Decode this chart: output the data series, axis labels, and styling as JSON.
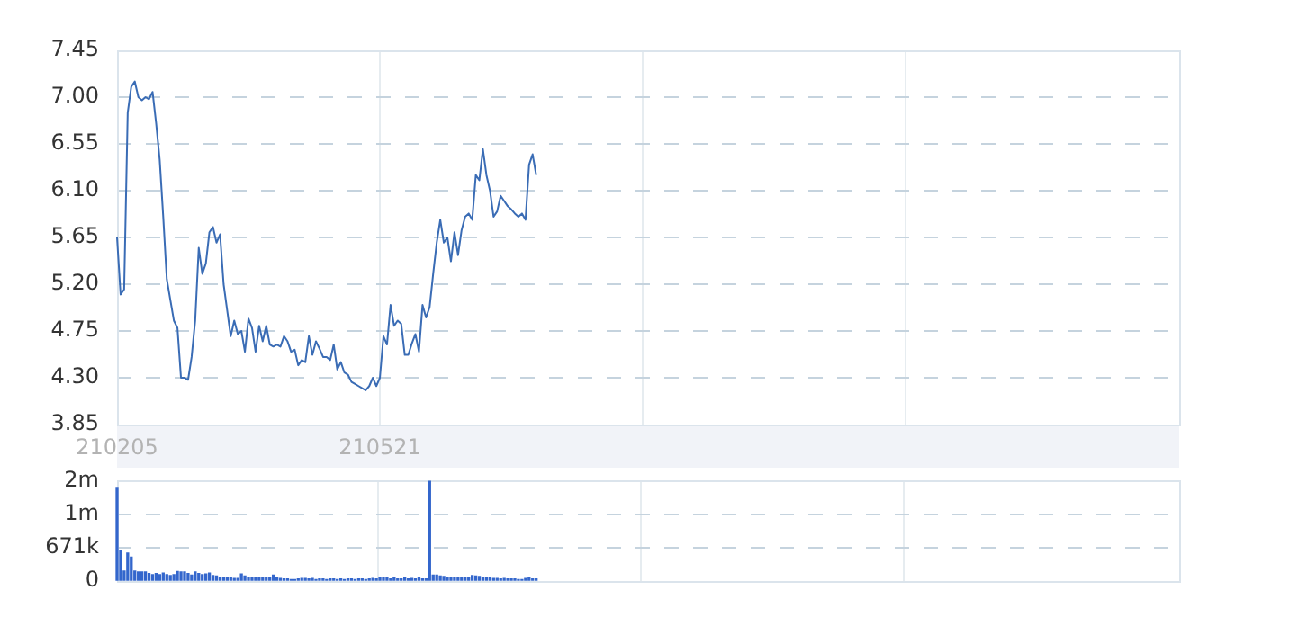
{
  "chart_data": [
    {
      "type": "line",
      "categories": [
        "210205",
        null,
        null,
        null,
        null,
        null,
        null,
        null,
        null,
        null,
        null,
        null,
        null,
        null,
        null,
        null,
        null,
        null,
        null,
        null,
        null,
        null,
        null,
        null,
        null,
        null,
        null,
        null,
        null,
        null,
        null,
        null,
        null,
        null,
        null,
        null,
        null,
        null,
        null,
        null,
        null,
        null,
        null,
        null,
        null,
        null,
        null,
        null,
        null,
        null,
        null,
        null,
        null,
        null,
        null,
        null,
        null,
        null,
        null,
        null,
        null,
        null,
        null,
        null,
        null,
        null,
        null,
        null,
        null,
        null,
        null,
        null,
        null,
        null,
        "210521",
        null,
        null,
        null,
        null,
        null,
        null,
        null,
        null,
        null,
        null,
        null,
        null,
        null,
        null,
        null,
        null,
        null,
        null,
        null,
        null,
        null,
        null,
        null,
        null,
        null,
        null,
        null,
        null,
        null,
        null,
        null,
        null,
        null,
        null,
        null,
        null,
        null,
        null,
        null,
        null,
        null,
        null,
        null,
        null,
        null,
        null,
        null,
        null,
        null,
        null,
        null,
        null,
        null,
        null,
        null,
        null,
        null,
        null,
        null,
        null,
        null,
        null,
        null,
        null,
        null,
        null,
        null,
        null,
        null,
        null,
        null,
        null,
        null,
        null,
        null,
        null,
        null,
        null,
        null,
        null,
        null,
        null,
        null,
        null,
        null,
        null,
        null,
        null,
        null,
        null,
        null,
        null,
        null,
        null,
        null,
        null,
        null,
        null,
        null,
        null,
        null,
        null,
        null,
        null,
        null,
        null,
        null,
        null,
        null,
        null,
        null,
        null,
        null,
        null,
        null,
        null,
        null,
        null,
        null,
        null,
        null,
        null,
        null,
        null,
        null,
        null,
        null,
        null,
        null,
        null,
        null,
        null,
        null,
        null,
        null,
        null,
        null,
        null,
        null,
        null,
        null,
        null,
        null,
        null,
        null,
        null,
        null,
        null,
        null,
        null,
        null,
        null,
        null,
        null,
        null,
        null,
        null,
        null,
        null,
        null,
        null,
        null,
        null,
        null,
        null,
        null,
        null,
        null,
        null,
        null,
        null,
        null,
        null,
        null,
        null,
        null,
        null,
        null,
        null,
        null,
        null,
        null,
        null,
        null,
        null,
        null,
        null,
        null,
        null,
        null,
        null,
        null,
        null,
        null,
        null,
        null,
        null,
        null,
        null,
        null,
        null,
        null,
        null,
        null,
        null,
        null,
        null,
        null,
        null,
        null,
        null,
        null,
        null,
        null,
        null,
        null,
        null,
        null,
        null,
        null,
        null,
        null,
        null,
        null,
        null
      ],
      "series": [
        {
          "color": "#3a6cb5",
          "values": [
            5.65,
            5.1,
            5.15,
            6.85,
            7.1,
            7.15,
            7.0,
            6.97,
            7.0,
            6.98,
            7.05,
            6.75,
            6.4,
            5.85,
            5.25,
            5.05,
            4.85,
            4.78,
            4.3,
            4.3,
            4.28,
            4.5,
            4.85,
            5.55,
            5.3,
            5.4,
            5.7,
            5.75,
            5.6,
            5.68,
            5.2,
            4.95,
            4.7,
            4.85,
            4.72,
            4.75,
            4.55,
            4.87,
            4.78,
            4.55,
            4.8,
            4.65,
            4.8,
            4.62,
            4.6,
            4.62,
            4.6,
            4.7,
            4.65,
            4.55,
            4.57,
            4.42,
            4.47,
            4.45,
            4.7,
            4.52,
            4.65,
            4.58,
            4.5,
            4.5,
            4.47,
            4.62,
            4.38,
            4.45,
            4.35,
            4.33,
            4.26,
            4.24,
            4.22,
            4.2,
            4.18,
            4.22,
            4.3,
            4.22,
            4.3,
            4.7,
            4.62,
            5.0,
            4.8,
            4.85,
            4.82,
            4.52,
            4.52,
            4.63,
            4.72,
            4.55,
            5.0,
            4.88,
            4.98,
            5.3,
            5.6,
            5.82,
            5.6,
            5.65,
            5.42,
            5.7,
            5.48,
            5.72,
            5.85,
            5.88,
            5.82,
            6.25,
            6.2,
            6.5,
            6.25,
            6.1,
            5.85,
            5.9,
            6.05,
            6.0,
            5.95,
            5.92,
            5.88,
            5.85,
            5.88,
            5.82,
            6.35,
            6.45,
            6.25,
            null,
            null,
            null,
            null,
            null,
            null,
            null,
            null,
            null,
            null,
            null,
            null,
            null,
            null,
            null,
            null,
            null,
            null,
            null,
            null,
            null,
            null,
            null,
            null,
            null,
            null,
            null,
            null,
            null,
            null,
            null,
            null,
            null,
            null,
            null,
            null,
            null,
            null,
            null,
            null,
            null,
            null,
            null,
            null,
            null,
            null,
            null,
            null,
            null,
            null,
            null,
            null,
            null,
            null,
            null,
            null,
            null,
            null,
            null,
            null,
            null,
            null,
            null,
            null,
            null,
            null,
            null,
            null,
            null,
            null,
            null,
            null,
            null,
            null,
            null,
            null,
            null,
            null,
            null,
            null,
            null,
            null,
            null,
            null,
            null,
            null,
            null,
            null,
            null,
            null,
            null,
            null,
            null,
            null,
            null,
            null,
            null,
            null,
            null,
            null,
            null,
            null,
            null,
            null,
            null,
            null,
            null,
            null,
            null,
            null,
            null,
            null,
            null,
            null,
            null,
            null,
            null,
            null,
            null,
            null,
            null,
            null,
            null,
            null,
            null,
            null,
            null,
            null,
            null,
            null,
            null,
            null,
            null,
            null,
            null,
            null,
            null,
            null,
            null,
            null,
            null,
            null,
            null,
            null,
            null,
            null,
            null,
            null,
            null,
            null,
            null,
            null,
            null,
            null,
            null,
            null,
            null,
            null,
            null,
            null,
            null,
            null,
            null,
            null,
            null,
            null,
            null,
            null,
            null,
            null,
            null,
            null,
            null,
            null,
            null,
            null,
            null,
            null,
            null,
            null,
            null
          ]
        }
      ],
      "ylim": [
        3.85,
        7.45
      ],
      "yticks": [
        3.85,
        {
          "value": 4.3,
          "label": "4.30"
        },
        4.75,
        {
          "value": 5.2,
          "label": "5.20"
        },
        5.65,
        {
          "value": 6.1,
          "label": "6.10"
        },
        6.55,
        {
          "value": 7,
          "label": "7.00"
        },
        7.45
      ],
      "grid": true,
      "legend": false,
      "marker": "none",
      "line_style": "solid"
    },
    {
      "type": "bar",
      "categories": [
        "210205",
        null,
        null,
        null,
        null,
        null,
        null,
        null,
        null,
        null,
        null,
        null,
        null,
        null,
        null,
        null,
        null,
        null,
        null,
        null,
        null,
        null,
        null,
        null,
        null,
        null,
        null,
        null,
        null,
        null,
        null,
        null,
        null,
        null,
        null,
        null,
        null,
        null,
        null,
        null,
        null,
        null,
        null,
        null,
        null,
        null,
        null,
        null,
        null,
        null,
        null,
        null,
        null,
        null,
        null,
        null,
        null,
        null,
        null,
        null,
        null,
        null,
        null,
        null,
        null,
        null,
        null,
        null,
        null,
        null,
        null,
        null,
        null,
        null,
        "210521",
        null,
        null,
        null,
        null,
        null,
        null,
        null,
        null,
        null,
        null,
        null,
        null,
        null,
        null,
        null,
        null,
        null,
        null,
        null,
        null,
        null,
        null,
        null,
        null,
        null,
        null,
        null,
        null,
        null,
        null,
        null,
        null,
        null,
        null,
        null,
        null,
        null,
        null,
        null,
        null,
        null,
        null,
        null,
        null,
        null,
        null,
        null,
        null,
        null,
        null,
        null,
        null,
        null,
        null,
        null,
        null,
        null,
        null,
        null,
        null,
        null,
        null,
        null,
        null,
        null,
        null,
        null,
        null,
        null,
        null,
        null,
        null,
        null,
        null,
        null,
        null,
        null,
        null,
        null,
        null,
        null,
        null,
        null,
        null,
        null,
        null,
        null,
        null,
        null,
        null,
        null,
        null,
        null,
        null,
        null,
        null,
        null,
        null,
        null,
        null,
        null,
        null,
        null,
        null,
        null,
        null,
        null,
        null,
        null,
        null,
        null,
        null,
        null,
        null,
        null,
        null,
        null,
        null,
        null,
        null,
        null,
        null,
        null,
        null,
        null,
        null,
        null,
        null,
        null,
        null,
        null,
        null,
        null,
        null,
        null,
        null,
        null,
        null,
        null,
        null,
        null,
        null,
        null,
        null,
        null,
        null,
        null,
        null,
        null,
        null,
        null,
        null,
        null,
        null,
        null,
        null,
        null,
        null,
        null,
        null,
        null,
        null,
        null,
        null,
        null,
        null,
        null,
        null,
        null,
        null,
        null,
        null,
        null,
        null,
        null,
        null,
        null,
        null,
        null,
        null,
        null,
        null,
        null,
        null,
        null,
        null,
        null,
        null,
        null,
        null,
        null,
        null,
        null,
        null,
        null,
        null,
        null,
        null,
        null,
        null,
        null,
        null,
        null,
        null,
        null,
        null,
        null,
        null,
        null,
        null,
        null,
        null,
        null,
        null,
        null,
        null,
        null,
        null,
        null,
        null,
        null,
        null,
        null,
        null,
        null
      ],
      "series": [
        {
          "color": "#3366cc",
          "values": [
            1860000,
            620000,
            200000,
            560000,
            480000,
            200000,
            180000,
            180000,
            180000,
            150000,
            130000,
            150000,
            130000,
            160000,
            130000,
            110000,
            130000,
            190000,
            180000,
            180000,
            150000,
            120000,
            180000,
            150000,
            130000,
            140000,
            160000,
            110000,
            100000,
            80000,
            60000,
            70000,
            60000,
            50000,
            50000,
            140000,
            100000,
            60000,
            60000,
            60000,
            60000,
            70000,
            80000,
            60000,
            120000,
            70000,
            50000,
            40000,
            40000,
            30000,
            30000,
            40000,
            50000,
            50000,
            40000,
            50000,
            30000,
            40000,
            40000,
            30000,
            40000,
            40000,
            30000,
            40000,
            30000,
            40000,
            40000,
            30000,
            40000,
            40000,
            30000,
            40000,
            50000,
            40000,
            60000,
            60000,
            60000,
            40000,
            70000,
            40000,
            40000,
            60000,
            40000,
            50000,
            40000,
            70000,
            40000,
            40000,
            2000000,
            120000,
            120000,
            100000,
            90000,
            80000,
            70000,
            70000,
            70000,
            60000,
            60000,
            60000,
            110000,
            100000,
            90000,
            80000,
            70000,
            60000,
            50000,
            50000,
            40000,
            50000,
            40000,
            40000,
            40000,
            30000,
            30000,
            50000,
            80000,
            40000,
            40000,
            null,
            null,
            null,
            null,
            null,
            null,
            null,
            null,
            null,
            null,
            null,
            null,
            null,
            null,
            null,
            null,
            null,
            null,
            null,
            null,
            null,
            null,
            null,
            null,
            null,
            null,
            null,
            null,
            null,
            null,
            null,
            null,
            null,
            null,
            null,
            null,
            null,
            null,
            null,
            null,
            null,
            null,
            null,
            null,
            null,
            null,
            null,
            null,
            null,
            null,
            null,
            null,
            null,
            null,
            null,
            null,
            null,
            null,
            null,
            null,
            null,
            null,
            null,
            null,
            null,
            null,
            null,
            null,
            null,
            null,
            null,
            null,
            null,
            null,
            null,
            null,
            null,
            null,
            null,
            null,
            null,
            null,
            null,
            null,
            null,
            null,
            null,
            null,
            null,
            null,
            null,
            null,
            null,
            null,
            null,
            null,
            null,
            null,
            null,
            null,
            null,
            null,
            null,
            null,
            null,
            null,
            null,
            null,
            null,
            null,
            null,
            null,
            null,
            null,
            null,
            null,
            null,
            null,
            null,
            null,
            null,
            null,
            null,
            null,
            null,
            null,
            null,
            null,
            null,
            null,
            null,
            null,
            null,
            null,
            null,
            null,
            null,
            null,
            null,
            null,
            null,
            null,
            null,
            null,
            null,
            null,
            null,
            null,
            null,
            null,
            null,
            null,
            null,
            null,
            null,
            null,
            null,
            null,
            null,
            null,
            null,
            null,
            null,
            null,
            null,
            null,
            null,
            null,
            null,
            null,
            null,
            null,
            null,
            null,
            null,
            null,
            null,
            null,
            null,
            null,
            null
          ]
        }
      ],
      "ylim": [
        0,
        2013000
      ],
      "yticks": [
        0,
        {
          "value": 671000,
          "label": "671k"
        },
        {
          "value": 1342000,
          "label": "1m"
        },
        {
          "value": 2013000,
          "label": "2m"
        }
      ],
      "grid": true,
      "legend": false,
      "tick_labels": "y"
    }
  ]
}
